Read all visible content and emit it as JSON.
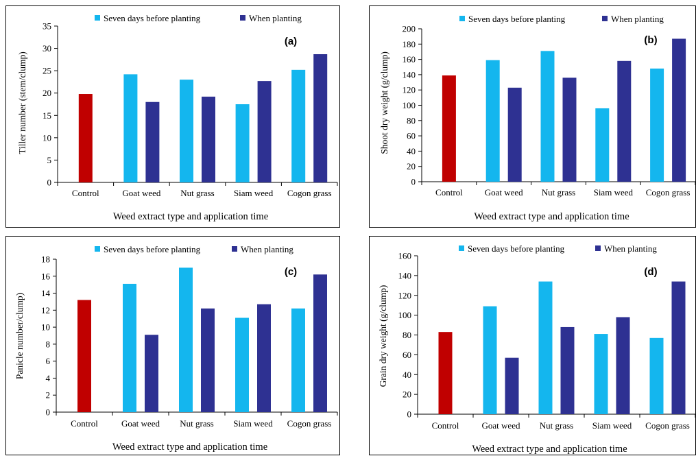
{
  "legend": {
    "series": [
      {
        "name": "Seven days before planting",
        "color": "#14B6EE"
      },
      {
        "name": "When planting",
        "color": "#2E3192"
      }
    ],
    "control_color": "#C00000"
  },
  "chart_data": [
    {
      "type": "bar",
      "panel_label": "(a)",
      "title": "",
      "xlabel": "Weed extract type and application time",
      "ylabel": "Tiller number (stem/clump)",
      "ylim": [
        0,
        35
      ],
      "yticks": [
        "0",
        "5",
        "10",
        "15",
        "20",
        "25",
        "30",
        "35"
      ],
      "categories": [
        "Control",
        "Goat weed",
        "Nut grass",
        "Siam weed",
        "Cogon grass"
      ],
      "control": 19.8,
      "series": [
        {
          "name": "Seven days before planting",
          "values": [
            null,
            24.2,
            23.0,
            17.5,
            25.2
          ]
        },
        {
          "name": "When planting",
          "values": [
            null,
            18.0,
            19.2,
            22.7,
            28.7
          ]
        }
      ]
    },
    {
      "type": "bar",
      "panel_label": "(b)",
      "title": "",
      "xlabel": "Weed extract type and application time",
      "ylabel": "Shoot dry weight (g/clump)",
      "ylim": [
        0,
        200
      ],
      "yticks": [
        "0",
        "20",
        "40",
        "60",
        "80",
        "100",
        "120",
        "140",
        "160",
        "180",
        "200"
      ],
      "categories": [
        "Control",
        "Goat weed",
        "Nut grass",
        "Siam weed",
        "Cogon grass"
      ],
      "control": 139,
      "series": [
        {
          "name": "Seven days before planting",
          "values": [
            null,
            159,
            171,
            96,
            148
          ]
        },
        {
          "name": "When planting",
          "values": [
            null,
            123,
            136,
            158,
            187
          ]
        }
      ]
    },
    {
      "type": "bar",
      "panel_label": "(c)",
      "title": "",
      "xlabel": "Weed extract type and application time",
      "ylabel": "Panicle number/clump)",
      "ylim": [
        0,
        18
      ],
      "yticks": [
        "0",
        "2",
        "4",
        "6",
        "8",
        "10",
        "12",
        "14",
        "16",
        "18"
      ],
      "categories": [
        "Control",
        "Goat weed",
        "Nut grass",
        "Siam weed",
        "Cogon grass"
      ],
      "control": 13.2,
      "series": [
        {
          "name": "Seven days before planting",
          "values": [
            null,
            15.1,
            17.0,
            11.1,
            12.2
          ]
        },
        {
          "name": "When planting",
          "values": [
            null,
            9.1,
            12.2,
            12.7,
            16.2
          ]
        }
      ]
    },
    {
      "type": "bar",
      "panel_label": "(d)",
      "title": "",
      "xlabel": "Weed extract type and application time",
      "ylabel": "Grain dry weight (g/clump)",
      "ylim": [
        0,
        160
      ],
      "yticks": [
        "0",
        "20",
        "40",
        "60",
        "80",
        "100",
        "120",
        "140",
        "160"
      ],
      "categories": [
        "Control",
        "Goat weed",
        "Nut grass",
        "Siam weed",
        "Cogon grass"
      ],
      "control": 83,
      "series": [
        {
          "name": "Seven days before planting",
          "values": [
            null,
            109,
            134,
            81,
            77
          ]
        },
        {
          "name": "When planting",
          "values": [
            null,
            57,
            88,
            98,
            134
          ]
        }
      ]
    }
  ]
}
